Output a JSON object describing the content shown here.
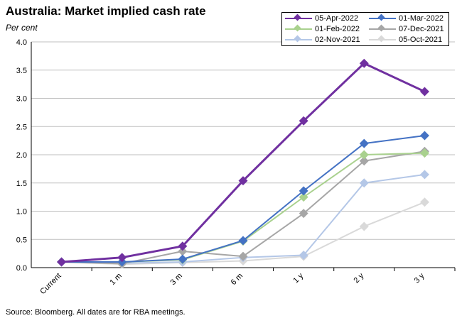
{
  "page": {
    "title": "Australia: Market implied cash rate",
    "subtitle": "Per cent",
    "source": "Source: Bloomberg. All dates are for RBA meetings."
  },
  "chart_data": {
    "type": "line",
    "title": "Australia: Market implied cash rate",
    "ylabel": "Per cent",
    "categories": [
      "Current",
      "1 m",
      "3 m",
      "6 m",
      "1 y",
      "2 y",
      "3 y"
    ],
    "ylim": [
      0,
      4.0
    ],
    "yticks": [
      "0.0",
      "0.5",
      "1.0",
      "1.5",
      "2.0",
      "2.5",
      "3.0",
      "3.5",
      "4.0"
    ],
    "grid": true,
    "legend_position": "top-right",
    "series": [
      {
        "name": "05-Oct-2021",
        "color": "#d9d9d9",
        "values": [
          0.1,
          0.06,
          0.09,
          0.12,
          0.2,
          0.73,
          1.16
        ]
      },
      {
        "name": "02-Nov-2021",
        "color": "#b4c7e7",
        "values": [
          0.1,
          0.08,
          0.1,
          0.18,
          0.22,
          1.5,
          1.65
        ]
      },
      {
        "name": "07-Dec-2021",
        "color": "#a6a6a6",
        "values": [
          0.1,
          0.07,
          0.29,
          0.2,
          0.96,
          1.89,
          2.06
        ]
      },
      {
        "name": "01-Feb-2022",
        "color": "#a9d18e",
        "values": [
          0.1,
          0.1,
          0.14,
          0.47,
          1.25,
          2.0,
          2.03
        ]
      },
      {
        "name": "01-Mar-2022",
        "color": "#4472c4",
        "values": [
          0.1,
          0.1,
          0.15,
          0.48,
          1.36,
          2.2,
          2.34
        ]
      },
      {
        "name": "05-Apr-2022",
        "color": "#7030a0",
        "values": [
          0.1,
          0.18,
          0.38,
          1.54,
          2.6,
          3.62,
          3.12
        ]
      }
    ],
    "legend_order": [
      "05-Apr-2022",
      "01-Mar-2022",
      "01-Feb-2022",
      "07-Dec-2021",
      "02-Nov-2021",
      "05-Oct-2021"
    ]
  }
}
